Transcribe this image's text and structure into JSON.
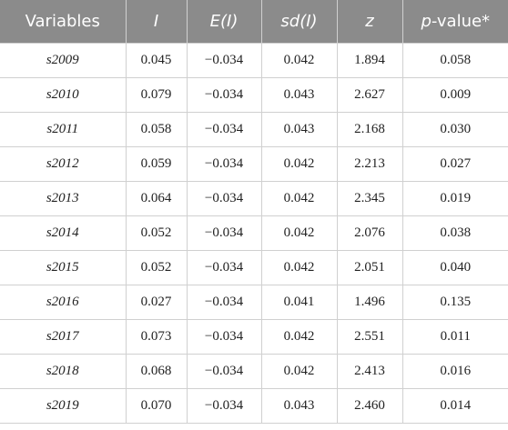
{
  "table": {
    "header": [
      "Variables",
      "I",
      "E(I)",
      "sd(I)",
      "z",
      [
        "p",
        "-value*"
      ]
    ],
    "rows": [
      [
        "s2009",
        "0.045",
        "−0.034",
        "0.042",
        "1.894",
        "0.058"
      ],
      [
        "s2010",
        "0.079",
        "−0.034",
        "0.043",
        "2.627",
        "0.009"
      ],
      [
        "s2011",
        "0.058",
        "−0.034",
        "0.043",
        "2.168",
        "0.030"
      ],
      [
        "s2012",
        "0.059",
        "−0.034",
        "0.042",
        "2.213",
        "0.027"
      ],
      [
        "s2013",
        "0.064",
        "−0.034",
        "0.042",
        "2.345",
        "0.019"
      ],
      [
        "s2014",
        "0.052",
        "−0.034",
        "0.042",
        "2.076",
        "0.038"
      ],
      [
        "s2015",
        "0.052",
        "−0.034",
        "0.042",
        "2.051",
        "0.040"
      ],
      [
        "s2016",
        "0.027",
        "−0.034",
        "0.041",
        "1.496",
        "0.135"
      ],
      [
        "s2017",
        "0.073",
        "−0.034",
        "0.042",
        "2.551",
        "0.011"
      ],
      [
        "s2018",
        "0.068",
        "−0.034",
        "0.042",
        "2.413",
        "0.016"
      ],
      [
        "s2019",
        "0.070",
        "−0.034",
        "0.043",
        "2.460",
        "0.014"
      ]
    ]
  }
}
